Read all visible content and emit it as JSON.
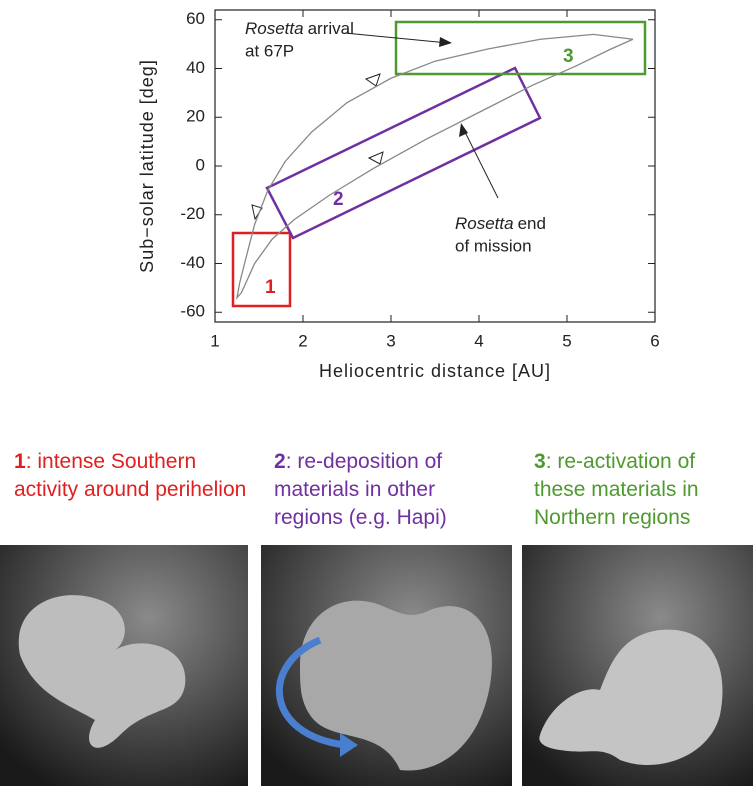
{
  "chart_data": {
    "type": "line",
    "x_label": "Heliocentric distance [AU]",
    "y_label": "Sub−solar latitude [deg]",
    "xlim": [
      1,
      6
    ],
    "xticks": [
      1,
      2,
      3,
      4,
      5,
      6
    ],
    "ylim": [
      -64,
      64
    ],
    "yticks": [
      -60,
      -40,
      -20,
      0,
      20,
      40,
      60
    ],
    "x": [
      5.75,
      5.3,
      4.7,
      4.1,
      3.5,
      3.0,
      2.5,
      2.1,
      1.8,
      1.6,
      1.45,
      1.35,
      1.28,
      1.25,
      1.3,
      1.45,
      1.65,
      1.9,
      2.3,
      2.8,
      3.4,
      4.0,
      4.6,
      5.1,
      5.5,
      5.75
    ],
    "series": [
      {
        "color": "#888888",
        "values": [
          52,
          54,
          52,
          48,
          43,
          36,
          26,
          14,
          2,
          -10,
          -24,
          -38,
          -48,
          -54,
          -52,
          -40,
          -30,
          -22,
          -12,
          -1,
          11,
          22,
          33,
          41,
          48,
          52
        ]
      }
    ],
    "annotations": [
      {
        "emphasis": "Rosetta",
        "text": "arrival",
        "line2": "at 67P"
      },
      {
        "emphasis": "Rosetta",
        "text": "end",
        "line2": "of mission"
      }
    ],
    "regions": [
      "1",
      "2",
      "3"
    ],
    "panels": [
      {
        "number": "1",
        "text": ": intense Southern activity around perihelion"
      },
      {
        "number": "2",
        "text": ": re-deposition of materials in other regions (e.g. Hapi)"
      },
      {
        "number": "3",
        "text": ": re-activation of these materials in Northern regions"
      }
    ]
  }
}
